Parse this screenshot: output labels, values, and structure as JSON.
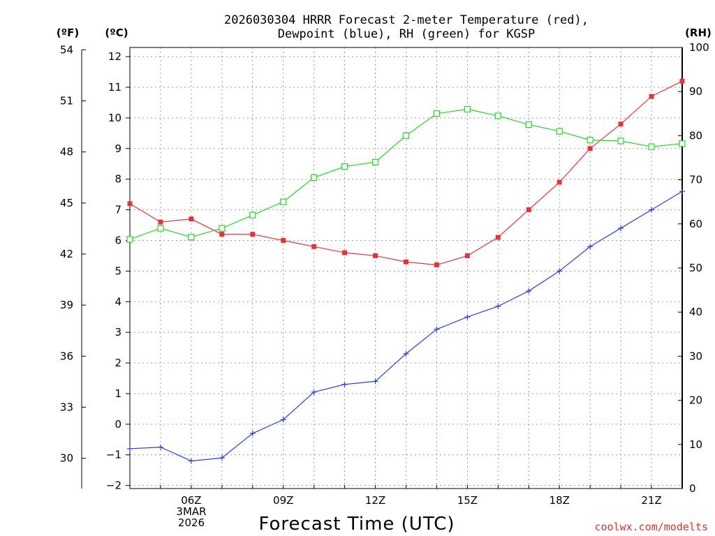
{
  "chart_data": {
    "type": "line",
    "title_line1": "2026030304 HRRR Forecast 2-meter Temperature (red),",
    "title_line2": "Dewpoint (blue), RH (green) for KGSP",
    "xlabel": "Forecast Time (UTC)",
    "credit": "coolwx.com/modelts",
    "left_axis_unit": "(ºF)",
    "mid_axis_unit": "(ºC)",
    "right_axis_unit": "(RH)",
    "xlim": [
      4,
      22
    ],
    "x_ticks": [
      {
        "x": 6,
        "label": "06Z"
      },
      {
        "x": 9,
        "label": "09Z"
      },
      {
        "x": 12,
        "label": "12Z"
      },
      {
        "x": 15,
        "label": "15Z"
      },
      {
        "x": 18,
        "label": "18Z"
      },
      {
        "x": 21,
        "label": "21Z"
      }
    ],
    "date_label_line1": "3MAR",
    "date_label_line2": "2026",
    "celsius_axis": {
      "range": [
        -2.1,
        12.3
      ],
      "ticks": [
        -2,
        -1,
        0,
        1,
        2,
        3,
        4,
        5,
        6,
        7,
        8,
        9,
        10,
        11,
        12
      ]
    },
    "fahrenheit_axis": {
      "ticks": [
        30,
        33,
        36,
        39,
        42,
        45,
        48,
        51,
        54
      ]
    },
    "rh_axis": {
      "range": [
        0,
        100
      ],
      "ticks": [
        0,
        10,
        20,
        30,
        40,
        50,
        60,
        70,
        80,
        90,
        100
      ]
    },
    "x": [
      4,
      5,
      6,
      7,
      8,
      9,
      10,
      11,
      12,
      13,
      14,
      15,
      16,
      17,
      18,
      19,
      20,
      21,
      22
    ],
    "series": [
      {
        "name": "Temperature",
        "color": "#e8323a",
        "axis": "celsius",
        "marker": "filled-square",
        "values": [
          7.2,
          6.6,
          6.7,
          6.2,
          6.2,
          6.0,
          5.8,
          5.6,
          5.5,
          5.3,
          5.2,
          5.5,
          6.1,
          7.0,
          7.9,
          9.0,
          9.8,
          10.7,
          11.2
        ]
      },
      {
        "name": "Dewpoint",
        "color": "#2a3fe0",
        "axis": "celsius",
        "marker": "plus",
        "values": [
          -0.8,
          -0.75,
          -1.2,
          -1.1,
          -0.3,
          0.15,
          1.05,
          1.3,
          1.4,
          2.3,
          3.1,
          3.5,
          3.85,
          4.35,
          5.0,
          5.8,
          6.4,
          7.0,
          7.6
        ]
      },
      {
        "name": "RH",
        "color": "#22d822",
        "axis": "rh",
        "marker": "open-square",
        "values": [
          56.5,
          59,
          57,
          59,
          62,
          65,
          70.5,
          73,
          74,
          80,
          85,
          86,
          84.5,
          82.5,
          81,
          79,
          78.8,
          77.5,
          78.2
        ]
      }
    ]
  }
}
